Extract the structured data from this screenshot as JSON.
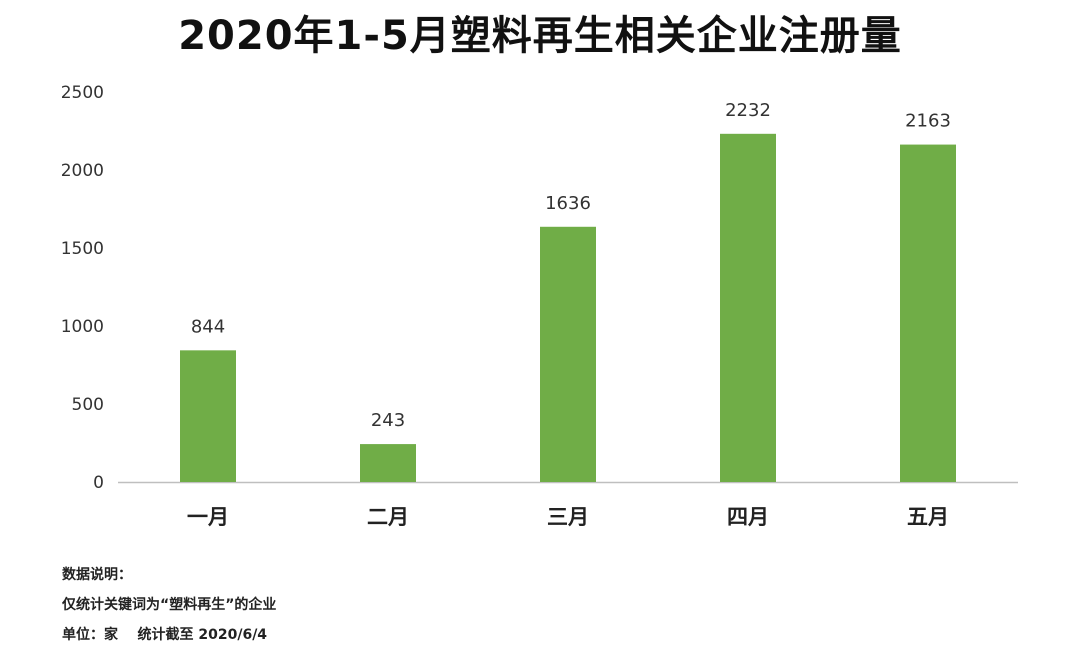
{
  "chart_data": {
    "type": "bar",
    "title": "2020年1-5月塑料再生相关企业注册量",
    "categories": [
      "一月",
      "二月",
      "三月",
      "四月",
      "五月"
    ],
    "values": [
      844,
      243,
      1636,
      2232,
      2163
    ],
    "ylim": [
      0,
      2500
    ],
    "yticks": [
      0,
      500,
      1000,
      1500,
      2000,
      2500
    ],
    "xlabel": "",
    "ylabel": "",
    "grid": false,
    "legend": "none",
    "bar_color": "#70ad47",
    "data_labels": true
  },
  "notes": [
    "数据说明：",
    "仅统计关键词为“塑料再生”的企业",
    "单位：家    统计截至 2020/6/4"
  ]
}
